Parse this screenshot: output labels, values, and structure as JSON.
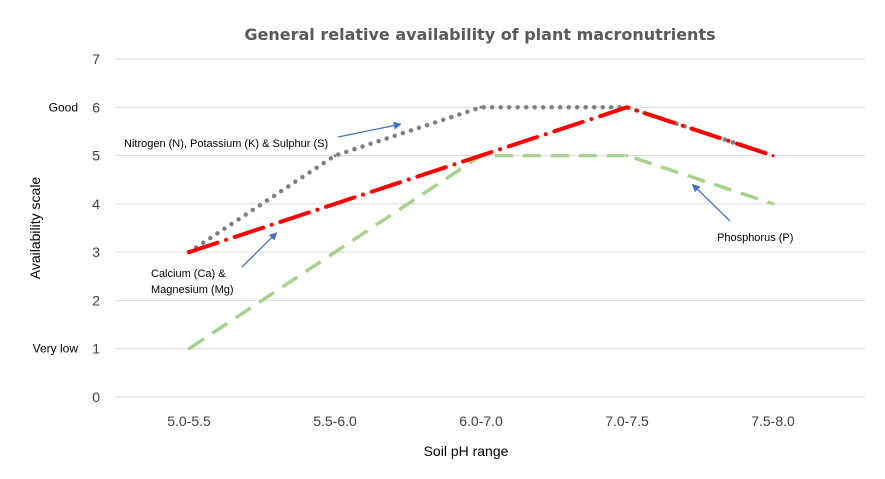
{
  "chart_data": {
    "type": "line",
    "title": "General relative availability of plant macronutrients",
    "xlabel": "Soil pH range",
    "ylabel": "Availability scale",
    "categories": [
      "5.0-5.5",
      "5.5-6.0",
      "6.0-7.0",
      "7.0-7.5",
      "7.5-8.0"
    ],
    "ylim": [
      0,
      7
    ],
    "yticks": [
      "0",
      "1",
      "2",
      "3",
      "4",
      "5",
      "6",
      "7"
    ],
    "y_side_labels": [
      {
        "value": 6,
        "text": "Good"
      },
      {
        "value": 1,
        "text": "Very low"
      }
    ],
    "grid": "horizontal",
    "series": [
      {
        "name": "Nitrogen (N), Potassium (K) & Sulphur (S)",
        "color": "#7f7f7f",
        "style": "dotted",
        "values": [
          3,
          5,
          6,
          6,
          5
        ]
      },
      {
        "name": "Calcium (Ca) & Magnesium (Mg)",
        "color": "#ff0000",
        "style": "long-dash-dot",
        "values": [
          3,
          4,
          5,
          6,
          5
        ]
      },
      {
        "name": "Phosphorus (P)",
        "color": "#a9d18e",
        "style": "dashed",
        "values": [
          1,
          3,
          5,
          5,
          4
        ]
      }
    ],
    "annotations": [
      {
        "lines": [
          "Nitrogen (N), Potassium (K) & Sulphur (S)"
        ],
        "series": 0,
        "arrow_x": 1.45,
        "arrow_y": 5.65
      },
      {
        "lines": [
          "Calcium (Ca) &",
          "Magnesium (Mg)"
        ],
        "series": 1,
        "arrow_x": 0.6,
        "arrow_y": 3.4
      },
      {
        "lines": [
          "Phosphorus (P)"
        ],
        "series": 2,
        "arrow_x": 3.45,
        "arrow_y": 4.4
      }
    ]
  }
}
